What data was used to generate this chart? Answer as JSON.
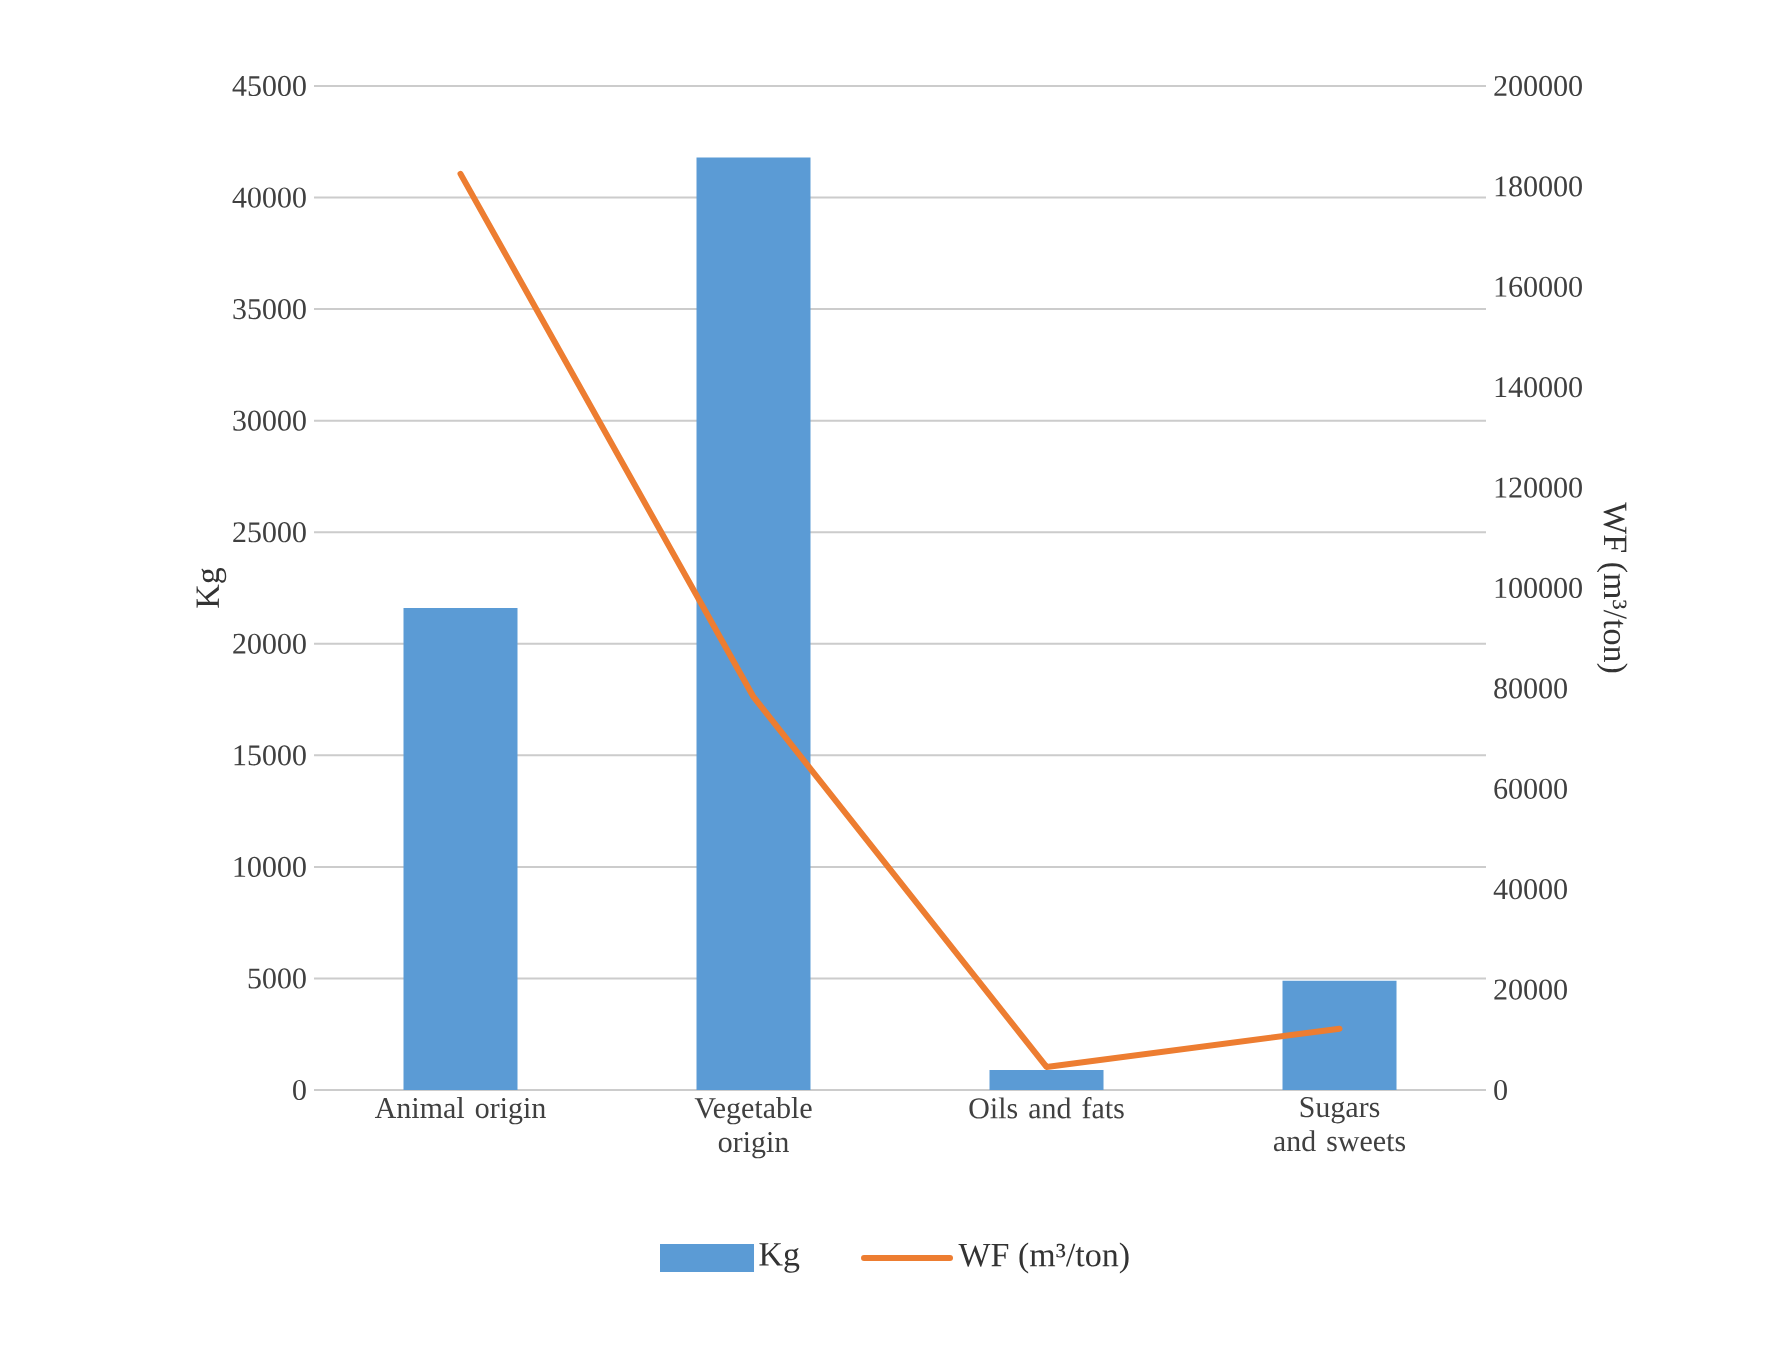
{
  "chart_data": {
    "type": "bar",
    "categories": [
      "Animal origin",
      "Vegetable origin",
      "Oils and fats",
      "Sugars and sweets"
    ],
    "ylabel": "Kg",
    "y2label": "WF (m³/ton)",
    "series": [
      {
        "name": "Kg",
        "color": "#5b9bd5",
        "values": [
          21600,
          41800,
          900,
          4900
        ]
      },
      {
        "name": "WF (m³/ton)",
        "type": "line",
        "axis": "y2",
        "color": "#ed7d31",
        "values": [
          182500,
          78300,
          4600,
          12200
        ]
      }
    ],
    "ylim": [
      0,
      45000
    ],
    "yticks": [
      0,
      5000,
      10000,
      15000,
      20000,
      25000,
      30000,
      35000,
      40000,
      45000
    ],
    "y2lim": [
      0,
      200000
    ],
    "y2ticks": [
      0,
      20000,
      40000,
      60000,
      80000,
      100000,
      120000,
      140000,
      160000,
      180000,
      200000
    ],
    "grid": "y",
    "legend": "bottom"
  }
}
